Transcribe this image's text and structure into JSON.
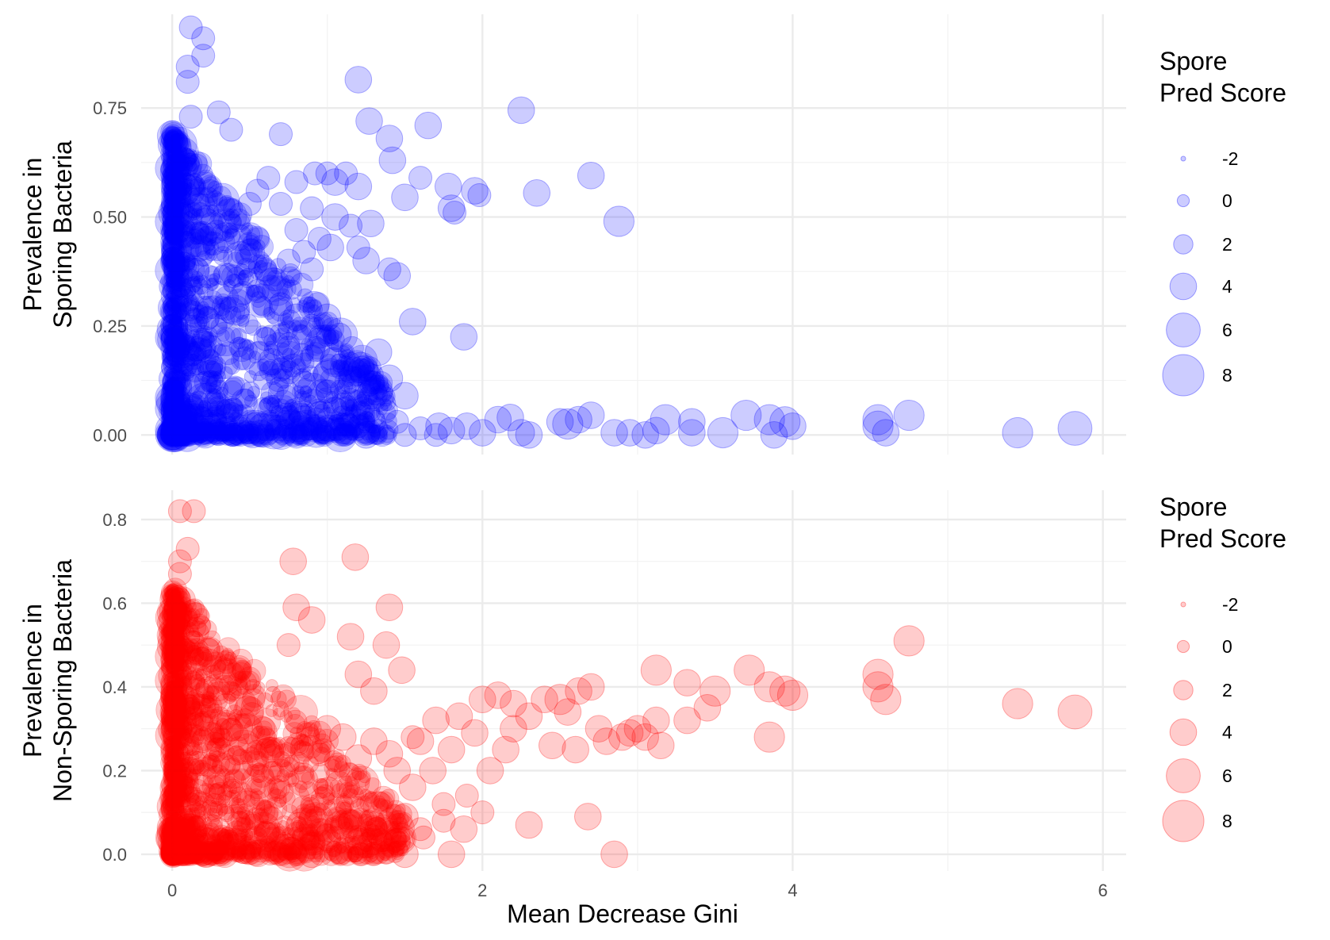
{
  "chart_data": [
    {
      "type": "scatter",
      "panel": "top",
      "xlabel": "",
      "ylabel_lines": [
        "Prevalence in",
        "Sporing Bacteria"
      ],
      "xlim": [
        -0.2,
        6.15
      ],
      "ylim": [
        -0.045,
        0.965
      ],
      "x_ticks": [
        0,
        2,
        4,
        6
      ],
      "y_ticks": [
        0,
        0.25,
        0.5,
        0.75
      ],
      "y_tick_labels": [
        "0.00",
        "0.25",
        "0.50",
        "0.75"
      ],
      "show_x_tick_labels": false,
      "grid": true,
      "color": "#0000ff",
      "point_alpha": 0.2,
      "size_variable": "Spore Pred Score",
      "legend": {
        "title_lines": [
          "Spore",
          "Pred Score"
        ],
        "position": "right",
        "entries": [
          {
            "label": "-2",
            "size_value": -2
          },
          {
            "label": "0",
            "size_value": 0
          },
          {
            "label": "2",
            "size_value": 2
          },
          {
            "label": "4",
            "size_value": 4
          },
          {
            "label": "6",
            "size_value": 6
          },
          {
            "label": "8",
            "size_value": 8
          }
        ]
      },
      "points": [
        [
          0.12,
          0.935,
          3
        ],
        [
          0.2,
          0.91,
          3
        ],
        [
          0.2,
          0.87,
          3
        ],
        [
          0.1,
          0.845,
          3
        ],
        [
          0.1,
          0.81,
          3
        ],
        [
          0.12,
          0.73,
          3
        ],
        [
          0.3,
          0.74,
          3
        ],
        [
          0.38,
          0.7,
          3
        ],
        [
          1.2,
          0.815,
          4
        ],
        [
          1.27,
          0.72,
          4
        ],
        [
          1.4,
          0.68,
          4
        ],
        [
          1.65,
          0.71,
          4
        ],
        [
          2.25,
          0.745,
          4
        ],
        [
          0.7,
          0.69,
          3
        ],
        [
          1.42,
          0.63,
          4
        ],
        [
          1.6,
          0.59,
          3
        ],
        [
          1.78,
          0.57,
          4
        ],
        [
          1.95,
          0.56,
          4
        ],
        [
          1.98,
          0.55,
          3
        ],
        [
          1.5,
          0.545,
          4
        ],
        [
          1.8,
          0.52,
          4
        ],
        [
          1.82,
          0.51,
          3
        ],
        [
          2.35,
          0.555,
          4
        ],
        [
          2.7,
          0.595,
          4
        ],
        [
          2.88,
          0.49,
          5
        ],
        [
          1.0,
          0.6,
          3
        ],
        [
          1.12,
          0.6,
          3
        ],
        [
          1.05,
          0.58,
          4
        ],
        [
          0.92,
          0.6,
          3
        ],
        [
          0.8,
          0.58,
          3
        ],
        [
          0.62,
          0.59,
          3
        ],
        [
          0.55,
          0.56,
          3
        ],
        [
          1.2,
          0.57,
          4
        ],
        [
          0.5,
          0.53,
          3
        ],
        [
          0.7,
          0.53,
          3
        ],
        [
          0.9,
          0.52,
          3
        ],
        [
          1.05,
          0.5,
          4
        ],
        [
          1.15,
          0.48,
          3
        ],
        [
          1.28,
          0.485,
          4
        ],
        [
          0.8,
          0.47,
          3
        ],
        [
          0.95,
          0.45,
          3
        ],
        [
          1.02,
          0.43,
          4
        ],
        [
          0.85,
          0.42,
          3
        ],
        [
          1.2,
          0.43,
          3
        ],
        [
          1.25,
          0.4,
          4
        ],
        [
          1.4,
          0.38,
          3
        ],
        [
          1.45,
          0.365,
          4
        ],
        [
          0.75,
          0.4,
          3
        ],
        [
          0.6,
          0.38,
          3
        ],
        [
          0.9,
          0.38,
          3
        ],
        [
          0.55,
          0.33,
          3
        ],
        [
          0.7,
          0.3,
          3
        ],
        [
          0.8,
          0.27,
          4
        ],
        [
          0.9,
          0.25,
          3
        ],
        [
          1.0,
          0.27,
          4
        ],
        [
          1.08,
          0.23,
          3
        ],
        [
          1.55,
          0.26,
          4
        ],
        [
          1.88,
          0.225,
          4
        ],
        [
          1.33,
          0.19,
          4
        ],
        [
          1.22,
          0.15,
          4
        ],
        [
          1.4,
          0.13,
          4
        ],
        [
          1.5,
          0.09,
          4
        ],
        [
          0.6,
          0.22,
          3
        ],
        [
          0.75,
          0.2,
          3
        ],
        [
          0.9,
          0.18,
          3
        ],
        [
          0.7,
          0.15,
          3
        ],
        [
          0.85,
          0.12,
          3
        ],
        [
          1.0,
          0.1,
          3
        ],
        [
          1.1,
          0.07,
          3
        ],
        [
          0.95,
          0.05,
          3
        ],
        [
          2.1,
          0.035,
          4
        ],
        [
          2.18,
          0.04,
          4
        ],
        [
          2.25,
          0.005,
          4
        ],
        [
          2.3,
          0.0,
          4
        ],
        [
          2.5,
          0.03,
          4
        ],
        [
          2.55,
          0.025,
          5
        ],
        [
          2.62,
          0.035,
          4
        ],
        [
          2.7,
          0.045,
          4
        ],
        [
          2.85,
          0.005,
          4
        ],
        [
          2.95,
          0.005,
          4
        ],
        [
          3.05,
          0.0,
          4
        ],
        [
          3.12,
          0.01,
          4
        ],
        [
          3.18,
          0.035,
          5
        ],
        [
          3.35,
          0.03,
          4
        ],
        [
          3.35,
          0.005,
          4
        ],
        [
          3.55,
          0.005,
          5
        ],
        [
          3.7,
          0.045,
          5
        ],
        [
          3.85,
          0.035,
          5
        ],
        [
          3.88,
          0.0,
          4
        ],
        [
          3.95,
          0.03,
          5
        ],
        [
          4.0,
          0.02,
          4
        ],
        [
          4.55,
          0.035,
          5
        ],
        [
          4.55,
          0.02,
          5
        ],
        [
          4.6,
          0.005,
          4
        ],
        [
          4.75,
          0.045,
          5
        ],
        [
          5.45,
          0.005,
          5
        ],
        [
          5.82,
          0.015,
          6
        ],
        [
          1.72,
          0.02,
          4
        ],
        [
          1.8,
          0.01,
          4
        ],
        [
          1.9,
          0.02,
          4
        ],
        [
          2.0,
          0.005,
          4
        ],
        [
          1.6,
          0.015,
          3
        ],
        [
          1.45,
          0.03,
          3
        ],
        [
          1.3,
          0.03,
          3
        ],
        [
          1.2,
          0.02,
          3
        ],
        [
          1.1,
          0.04,
          3
        ],
        [
          1.05,
          0.06,
          3
        ],
        [
          1.25,
          0.0,
          4
        ],
        [
          1.5,
          0.0,
          3
        ],
        [
          1.7,
          0.0,
          3
        ]
      ],
      "dense_region": {
        "count": 1500,
        "x_max": 1.4,
        "y_max": 0.7,
        "y_floor": 0.0
      }
    },
    {
      "type": "scatter",
      "panel": "bottom",
      "xlabel": "Mean Decrease Gini",
      "ylabel_lines": [
        "Prevalence in",
        "Non-Sporing Bacteria"
      ],
      "xlim": [
        -0.2,
        6.15
      ],
      "ylim": [
        -0.04,
        0.87
      ],
      "x_ticks": [
        0,
        2,
        4,
        6
      ],
      "x_tick_labels": [
        "0",
        "2",
        "4",
        "6"
      ],
      "y_ticks": [
        0,
        0.2,
        0.4,
        0.6,
        0.8
      ],
      "y_tick_labels": [
        "0.0",
        "0.2",
        "0.4",
        "0.6",
        "0.8"
      ],
      "show_x_tick_labels": true,
      "grid": true,
      "color": "#ff0000",
      "point_alpha": 0.2,
      "size_variable": "Spore Pred Score",
      "legend": {
        "title_lines": [
          "Spore",
          "Pred Score"
        ],
        "position": "right",
        "entries": [
          {
            "label": "-2",
            "size_value": -2
          },
          {
            "label": "0",
            "size_value": 0
          },
          {
            "label": "2",
            "size_value": 2
          },
          {
            "label": "4",
            "size_value": 4
          },
          {
            "label": "6",
            "size_value": 6
          },
          {
            "label": "8",
            "size_value": 8
          }
        ]
      },
      "points": [
        [
          0.05,
          0.82,
          3
        ],
        [
          0.14,
          0.82,
          3
        ],
        [
          0.1,
          0.73,
          3
        ],
        [
          0.05,
          0.7,
          3
        ],
        [
          0.05,
          0.67,
          3
        ],
        [
          0.78,
          0.7,
          4
        ],
        [
          1.18,
          0.71,
          4
        ],
        [
          1.4,
          0.59,
          4
        ],
        [
          1.38,
          0.5,
          4
        ],
        [
          1.48,
          0.44,
          4
        ],
        [
          1.3,
          0.39,
          4
        ],
        [
          1.2,
          0.43,
          4
        ],
        [
          1.15,
          0.52,
          4
        ],
        [
          0.9,
          0.56,
          4
        ],
        [
          0.8,
          0.59,
          4
        ],
        [
          0.75,
          0.5,
          3
        ],
        [
          2.0,
          0.37,
          4
        ],
        [
          2.1,
          0.38,
          4
        ],
        [
          2.2,
          0.36,
          4
        ],
        [
          2.3,
          0.33,
          4
        ],
        [
          2.4,
          0.37,
          4
        ],
        [
          2.5,
          0.37,
          5
        ],
        [
          2.55,
          0.34,
          4
        ],
        [
          2.62,
          0.39,
          4
        ],
        [
          2.7,
          0.4,
          4
        ],
        [
          2.75,
          0.3,
          4
        ],
        [
          2.8,
          0.27,
          4
        ],
        [
          2.9,
          0.28,
          4
        ],
        [
          2.95,
          0.29,
          4
        ],
        [
          3.0,
          0.3,
          4
        ],
        [
          3.05,
          0.28,
          4
        ],
        [
          3.12,
          0.32,
          4
        ],
        [
          3.15,
          0.26,
          4
        ],
        [
          3.12,
          0.44,
          5
        ],
        [
          3.32,
          0.41,
          4
        ],
        [
          3.32,
          0.32,
          4
        ],
        [
          3.45,
          0.35,
          4
        ],
        [
          3.5,
          0.39,
          5
        ],
        [
          3.72,
          0.44,
          5
        ],
        [
          3.85,
          0.4,
          5
        ],
        [
          3.85,
          0.28,
          5
        ],
        [
          3.95,
          0.39,
          5
        ],
        [
          4.0,
          0.38,
          5
        ],
        [
          4.55,
          0.43,
          5
        ],
        [
          4.55,
          0.4,
          5
        ],
        [
          4.6,
          0.37,
          5
        ],
        [
          4.75,
          0.51,
          5
        ],
        [
          5.45,
          0.36,
          5
        ],
        [
          5.82,
          0.34,
          6
        ],
        [
          2.3,
          0.07,
          4
        ],
        [
          2.68,
          0.09,
          4
        ],
        [
          2.85,
          0.0,
          4
        ],
        [
          1.8,
          0.0,
          4
        ],
        [
          1.88,
          0.06,
          4
        ],
        [
          1.75,
          0.08,
          3
        ],
        [
          1.6,
          0.06,
          3
        ],
        [
          1.5,
          0.09,
          4
        ],
        [
          1.55,
          0.16,
          4
        ],
        [
          1.45,
          0.2,
          4
        ],
        [
          1.68,
          0.2,
          4
        ],
        [
          1.8,
          0.25,
          4
        ],
        [
          2.05,
          0.2,
          4
        ],
        [
          2.15,
          0.25,
          4
        ],
        [
          1.95,
          0.29,
          4
        ],
        [
          1.7,
          0.32,
          4
        ],
        [
          1.6,
          0.27,
          4
        ],
        [
          1.4,
          0.24,
          4
        ],
        [
          1.3,
          0.27,
          4
        ],
        [
          1.2,
          0.23,
          4
        ],
        [
          1.1,
          0.28,
          4
        ],
        [
          1.0,
          0.3,
          4
        ],
        [
          1.5,
          0.0,
          4
        ],
        [
          1.2,
          0.03,
          4
        ],
        [
          1.0,
          0.04,
          4
        ],
        [
          0.9,
          0.0,
          4
        ],
        [
          1.3,
          0.06,
          4
        ],
        [
          1.45,
          0.03,
          4
        ],
        [
          1.62,
          0.04,
          3
        ],
        [
          1.55,
          0.28,
          3
        ],
        [
          1.85,
          0.33,
          4
        ],
        [
          2.2,
          0.3,
          4
        ],
        [
          2.45,
          0.26,
          4
        ],
        [
          2.6,
          0.25,
          4
        ],
        [
          1.9,
          0.14,
          3
        ],
        [
          1.75,
          0.12,
          3
        ],
        [
          2.0,
          0.1,
          3
        ]
      ],
      "dense_region": {
        "count": 1500,
        "x_max": 1.5,
        "y_max": 0.64,
        "y_floor": 0.0
      }
    }
  ]
}
